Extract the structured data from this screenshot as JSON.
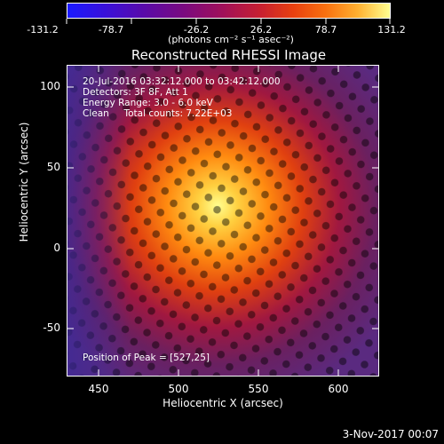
{
  "colorbar": {
    "ticks": [
      "-131.2",
      "-78.7",
      "-26.2",
      "26.2",
      "78.7",
      "131.2"
    ],
    "unit": "(photons cm⁻² s⁻¹ asec⁻²)"
  },
  "plot": {
    "title": "Reconstructed RHESSI Image",
    "xlabel": "Heliocentric X (arcsec)",
    "ylabel": "Heliocentric Y (arcsec)",
    "xticks": [
      "450",
      "500",
      "550",
      "600"
    ],
    "yticks": [
      "100",
      "50",
      "0",
      "-50"
    ],
    "info_lines": [
      "20-Jul-2016 03:32:12.000 to 03:42:12.000",
      "Detectors: 3F 8F, Att 1",
      "Energy Range: 3.0 - 6.0 keV",
      "Clean     Total counts: 7.22E+03"
    ],
    "peak_label": "Position of Peak = [527,25]"
  },
  "footer": {
    "datestamp": "3-Nov-2017 00:07"
  }
}
